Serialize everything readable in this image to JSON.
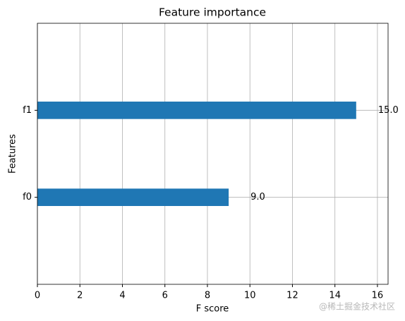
{
  "chart_data": {
    "type": "barh",
    "title": "Feature importance",
    "x_label": "F score",
    "y_label": "Features",
    "categories": [
      "f0",
      "f1"
    ],
    "values": [
      9,
      15
    ],
    "value_labels": [
      "9.0",
      "15.0"
    ],
    "color": "#1f77b4",
    "xlim": [
      0,
      16.5
    ],
    "xticks": [
      0,
      2,
      4,
      6,
      8,
      10,
      12,
      14,
      16
    ],
    "grid": true
  },
  "watermark": "@稀土掘金技术社区"
}
